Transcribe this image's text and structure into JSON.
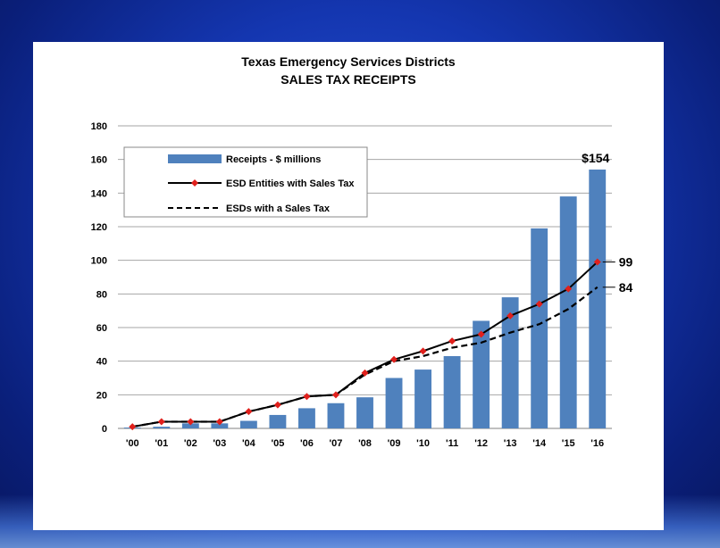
{
  "chart_data": {
    "type": "bar",
    "title": "Texas Emergency Services Districts",
    "subtitle": "SALES TAX RECEIPTS",
    "categories": [
      "'00",
      "'01",
      "'02",
      "'03",
      "'04",
      "'05",
      "'06",
      "'07",
      "'08",
      "'09",
      "'10",
      "'11",
      "'12",
      "'13",
      "'14",
      "'15",
      "'16"
    ],
    "series": [
      {
        "name": "Receipts - $ millions",
        "kind": "bar",
        "color": "#4f81bd",
        "values": [
          0.5,
          1,
          3,
          3,
          4.5,
          8,
          12,
          15,
          18.5,
          30,
          35,
          43,
          64,
          78,
          119,
          138,
          154
        ]
      },
      {
        "name": "ESD Entities with Sales Tax",
        "kind": "line",
        "color": "#000000",
        "marker_color": "#e0201c",
        "values": [
          1,
          4,
          4,
          4,
          10,
          14,
          19,
          20,
          33,
          41,
          46,
          52,
          56,
          67,
          74,
          83,
          99
        ]
      },
      {
        "name": "ESDs with a Sales Tax",
        "kind": "dashed-line",
        "color": "#000000",
        "values": [
          1,
          4,
          4,
          4,
          10,
          14,
          19,
          20,
          32,
          40,
          43,
          48,
          51,
          57,
          62,
          71,
          84
        ]
      }
    ],
    "ylim": [
      0,
      180
    ],
    "yticks": [
      "0",
      "20",
      "40",
      "60",
      "80",
      "100",
      "120",
      "140",
      "160",
      "180"
    ],
    "grid": true,
    "legend_position": "top-left",
    "annotations": {
      "bar_last": "$154",
      "line_last": "99",
      "dashed_last": "84"
    }
  }
}
